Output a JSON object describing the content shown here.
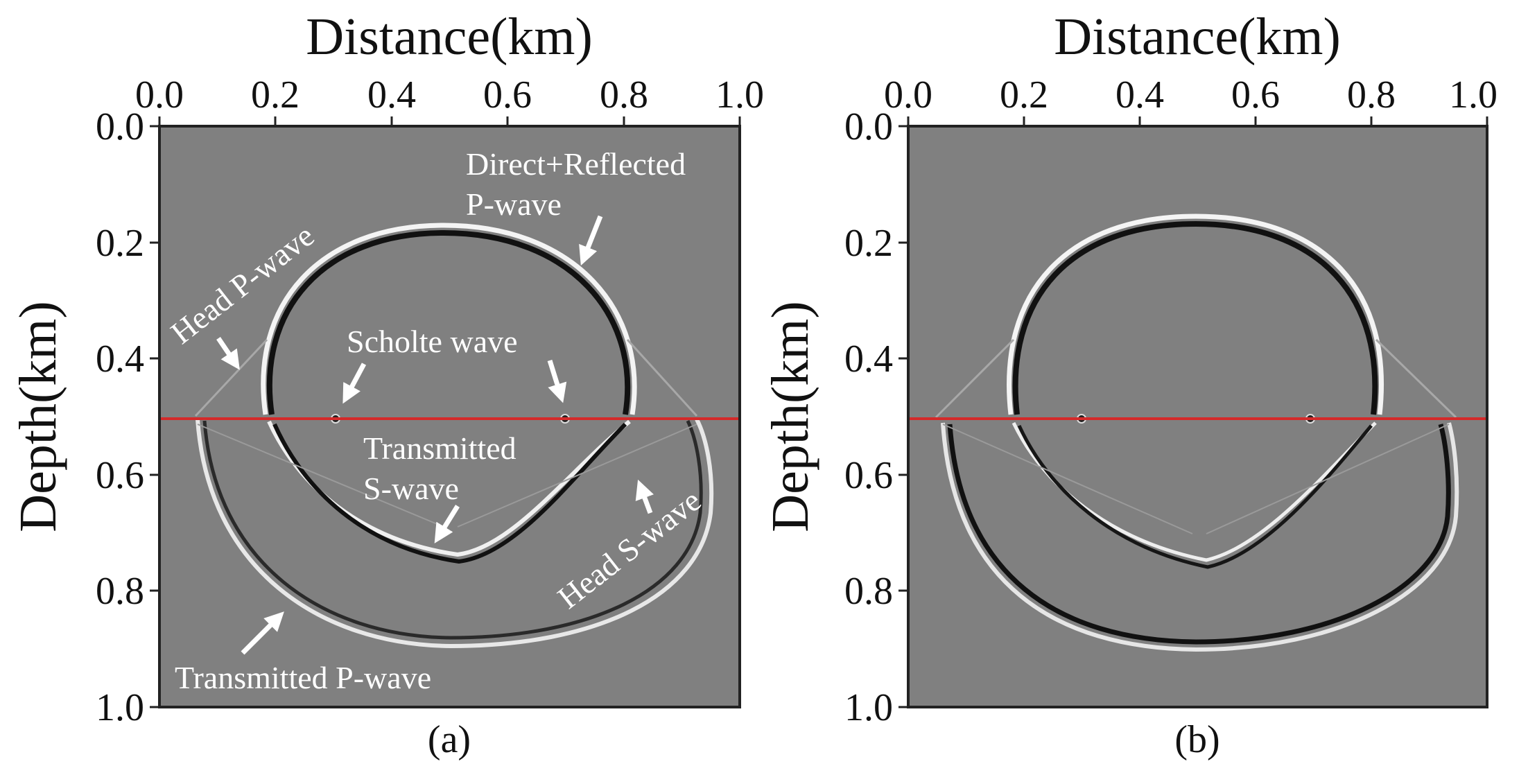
{
  "colors": {
    "background": "#808080",
    "interface_line": "#d42a2a",
    "axis": "#222222",
    "annotation": "#ffffff"
  },
  "interface_depth_km": 0.5,
  "panels": [
    {
      "id": "a",
      "label": "(a)",
      "x_title": "Distance(km)",
      "y_title": "Depth(km)",
      "x_ticks": [
        "0.0",
        "0.2",
        "0.4",
        "0.6",
        "0.8",
        "1.0"
      ],
      "y_ticks": [
        "0.0",
        "0.2",
        "0.4",
        "0.6",
        "0.8",
        "1.0"
      ],
      "annotations": {
        "direct_reflected_line1": "Direct+Reflected",
        "direct_reflected_line2": "P-wave",
        "head_p": "Head P-wave",
        "scholte": "Scholte wave",
        "transmitted_s_line1": "Transmitted",
        "transmitted_s_line2": "S-wave",
        "head_s": "Head S-wave",
        "transmitted_p": "Transmitted P-wave"
      }
    },
    {
      "id": "b",
      "label": "(b)",
      "x_title": "Distance(km)",
      "y_title": "Depth(km)",
      "x_ticks": [
        "0.0",
        "0.2",
        "0.4",
        "0.6",
        "0.8",
        "1.0"
      ],
      "y_ticks": [
        "0.0",
        "0.2",
        "0.4",
        "0.6",
        "0.8",
        "1.0"
      ]
    }
  ]
}
